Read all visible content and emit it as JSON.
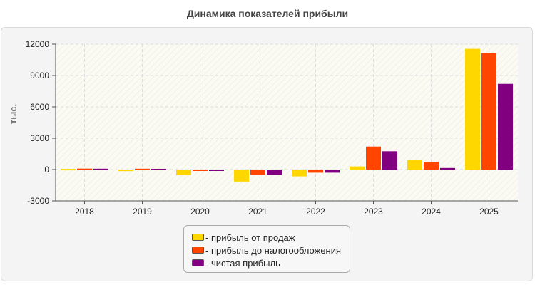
{
  "chart_data": {
    "type": "bar",
    "title": "Динамика показателей прибыли",
    "ylabel": "тыс.",
    "xlabel": "",
    "ylim": [
      -3000,
      12000
    ],
    "yticks": [
      -3000,
      0,
      3000,
      6000,
      9000,
      12000
    ],
    "grid": true,
    "legend_position": "bottom-center",
    "categories": [
      "2018",
      "2019",
      "2020",
      "2021",
      "2022",
      "2023",
      "2024",
      "2025"
    ],
    "series": [
      {
        "name": "- прибыль от продаж",
        "color": "#ffd700",
        "values": [
          60,
          -150,
          -550,
          -1150,
          -650,
          300,
          900,
          11550
        ]
      },
      {
        "name": "- прибыль до налогообложения",
        "color": "#ff4500",
        "values": [
          90,
          80,
          -50,
          -500,
          -300,
          2200,
          750,
          11150
        ]
      },
      {
        "name": "- чистая прибыль",
        "color": "#800080",
        "values": [
          80,
          70,
          -50,
          -500,
          -300,
          1750,
          150,
          8200
        ]
      }
    ]
  }
}
